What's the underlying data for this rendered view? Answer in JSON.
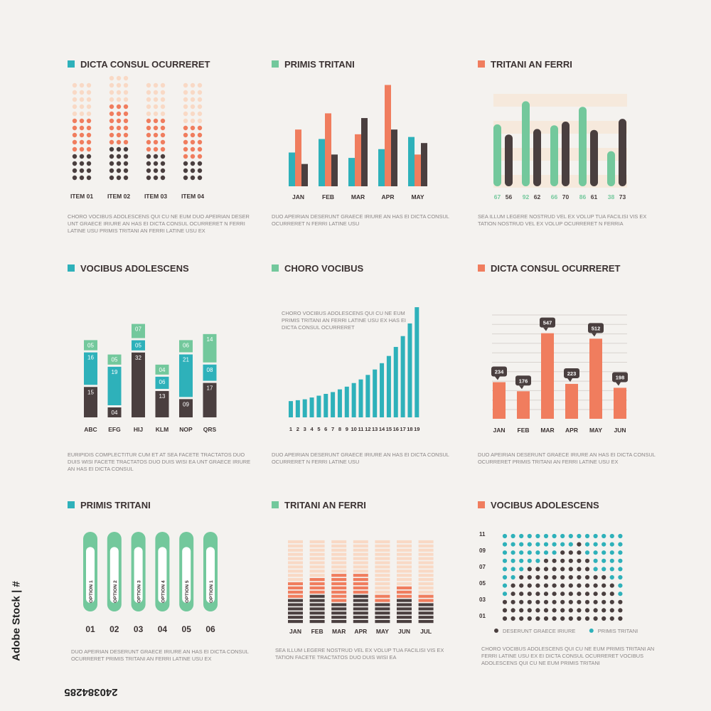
{
  "colors": {
    "teal": "#2eb1ba",
    "mint": "#73c89c",
    "salmon": "#f07d5e",
    "dark": "#4a3f3f",
    "peach": "#f9d9c5",
    "pale": "#f6e9dc",
    "grey": "#8a8585"
  },
  "watermark": {
    "id": "240384285",
    "brand": "Adobe Stock"
  },
  "panels": [
    {
      "title": "DICTA CONSUL OCURRERET",
      "color": "#2eb1ba",
      "desc": "CHORO VOCIBUS ADOLESCENS QUI CU NE EUM DUO APEIRIAN DESER UNT GRAECE IRIURE AN HAS EI DICTA CONSUL OCURRERET N FERRI LATINE USU PRIMIS TRITANI AN FERRI LATINE USU EX"
    },
    {
      "title": "PRIMIS TRITANI",
      "color": "#73c89c",
      "desc": "DUO APEIRIAN DESERUNT GRAECE IRIURE AN HAS EI DICTA CONSUL OCURRERET N FERRI LATINE USU"
    },
    {
      "title": "TRITANI AN FERRI",
      "color": "#f07d5e",
      "desc": "SEA ILLUM LEGERE NOSTRUD VEL EX VOLUP TUA FACILISI VIS EX TATION NOSTRUD VEL EX VOLUP OCURRERET N FERRIA"
    },
    {
      "title": "VOCIBUS ADOLESCENS",
      "color": "#2eb1ba",
      "desc": "EURIPIDIS COMPLECTITUR CUM ET AT SEA FACETE TRACTATOS DUO DUIS WISI FACETE TRACTATOS DUO DUIS WISI EA UNT GRAECE IRIURE AN HAS EI DICTA CONSUL"
    },
    {
      "title": "CHORO VOCIBUS",
      "color": "#73c89c",
      "desc": "DUO APEIRIAN DESERUNT GRAECE IRIURE AN HAS EI DICTA CONSUL OCURRERET N FERRI LATINE USU"
    },
    {
      "title": "DICTA CONSUL OCURRERET",
      "color": "#f07d5e",
      "desc": "DUO APEIRIAN DESERUNT GRAECE IRIURE AN HAS EI DICTA CONSUL OCURRERET PRIMIS TRITANI AN FERRI LATINE USU EX"
    },
    {
      "title": "PRIMIS TRITANI",
      "color": "#2eb1ba",
      "desc": "DUO APEIRIAN DESERUNT GRAECE IRIURE AN HAS EI DICTA CONSUL OCURRERET PRIMIS TRITANI AN FERRI LATINE USU EX"
    },
    {
      "title": "TRITANI AN FERRI",
      "color": "#73c89c",
      "desc": "SEA ILLUM LEGERE NOSTRUD VEL EX VOLUP TUA FACILISI VIS EX TATION FACETE TRACTATOS DUO DUIS WISI EA"
    },
    {
      "title": "VOCIBUS ADOLESCENS",
      "color": "#f07d5e",
      "desc": "CHORO VOCIBUS ADOLESCENS QUI CU NE EUM PRIMIS TRITANI AN FERRI LATINE USU EX EI DICTA CONSUL OCURRERET VOCIBUS ADOLESCENS QUI CU NE EUM PRIMIS TRITANI"
    }
  ],
  "chart_data": [
    {
      "type": "dot-column",
      "title": "DICTA CONSUL OCURRERET",
      "categories": [
        "ITEM 01",
        "ITEM 02",
        "ITEM 03",
        "ITEM 04"
      ],
      "series": [
        {
          "values": [
            4,
            5,
            4,
            3
          ],
          "color": "#4a3f3f"
        },
        {
          "values": [
            5,
            6,
            5,
            5
          ],
          "color": "#f07d5e"
        },
        {
          "values": [
            5,
            4,
            5,
            6
          ],
          "color": "#f9d9c5"
        }
      ]
    },
    {
      "type": "bar",
      "title": "PRIMIS TRITANI",
      "categories": [
        "JAN",
        "FEB",
        "MAR",
        "APR",
        "MAY"
      ],
      "series": [
        {
          "values": [
            50,
            70,
            42,
            55,
            73
          ],
          "color": "#2eb1ba"
        },
        {
          "values": [
            84,
            108,
            77,
            150,
            47
          ],
          "color": "#f07d5e"
        },
        {
          "values": [
            33,
            47,
            101,
            84,
            64
          ],
          "color": "#4a3f3f"
        }
      ]
    },
    {
      "type": "bar",
      "title": "TRITANI AN FERRI",
      "x": [
        "67",
        "56",
        "92",
        "62",
        "66",
        "70",
        "86",
        "61",
        "38",
        "73"
      ],
      "values": [
        67,
        56,
        92,
        62,
        66,
        70,
        86,
        61,
        38,
        73
      ],
      "value_labels": [
        {
          "values": [
            67,
            92,
            66,
            86,
            38
          ],
          "color": "#73c89c"
        },
        {
          "values": [
            56,
            62,
            70,
            61,
            73
          ],
          "color": "#4a3f3f"
        }
      ],
      "colors": [
        "#73c89c",
        "#4a3f3f"
      ]
    },
    {
      "type": "stacked-bar",
      "title": "VOCIBUS ADOLESCENS",
      "categories": [
        "ABC",
        "EFG",
        "HIJ",
        "KLM",
        "NOP",
        "QRS"
      ],
      "series": [
        {
          "values": [
            "15",
            "04",
            "32",
            "13",
            "09",
            "17"
          ],
          "color": "#4a3f3f"
        },
        {
          "values": [
            "16",
            "19",
            "05",
            "06",
            "21",
            "08"
          ],
          "color": "#2eb1ba"
        },
        {
          "values": [
            "05",
            "05",
            "07",
            "04",
            "06",
            "14"
          ],
          "color": "#73c89c"
        }
      ]
    },
    {
      "type": "bar",
      "title": "CHORO VOCIBUS",
      "annotation": "CHORO VOCIBUS ADOLESCENS QUI CU NE EUM PRIMIS TRITANI AN FERRI LATINE USU EX HAS EI DICTA CONSUL OCURRERET",
      "categories": [
        "1",
        "2",
        "3",
        "4",
        "5",
        "6",
        "7",
        "8",
        "9",
        "10",
        "11",
        "12",
        "13",
        "14",
        "15",
        "16",
        "17",
        "18",
        "19"
      ],
      "values": [
        18,
        19,
        20,
        22,
        24,
        26,
        28,
        31,
        34,
        38,
        42,
        47,
        53,
        60,
        68,
        78,
        90,
        104,
        122
      ],
      "color": "#2eb1ba"
    },
    {
      "type": "bar",
      "title": "DICTA CONSUL OCURRERET",
      "categories": [
        "JAN",
        "FEB",
        "MAR",
        "APR",
        "MAY",
        "JUN"
      ],
      "values": [
        234,
        176,
        547,
        223,
        512,
        198
      ],
      "value_labels": [
        "234",
        "176",
        "547",
        "223",
        "512",
        "198"
      ],
      "color": "#f07d5e",
      "grid": true
    },
    {
      "type": "gauge",
      "title": "PRIMIS TRITANI",
      "categories": [
        "01",
        "02",
        "03",
        "04",
        "05",
        "06"
      ],
      "labels": [
        "OPTION 1",
        "OPTION 2",
        "OPTION 3",
        "OPTION 4",
        "OPTION 5",
        "OPTION 1"
      ],
      "values": [
        0.92,
        0.92,
        0.92,
        0.92,
        0.92,
        0.92
      ],
      "color": "#73c89c"
    },
    {
      "type": "segmented-bar",
      "title": "TRITANI AN FERRI",
      "categories": [
        "JAN",
        "FEB",
        "MAR",
        "APR",
        "MAY",
        "JUN",
        "JUL"
      ],
      "series": [
        {
          "values": [
            6,
            7,
            5,
            7,
            5,
            6,
            5
          ],
          "color": "#4a3f3f"
        },
        {
          "values": [
            4,
            4,
            7,
            5,
            2,
            3,
            2
          ],
          "color": "#f07d5e"
        },
        {
          "values": [
            10,
            9,
            8,
            8,
            13,
            11,
            13
          ],
          "color": "#f9d9c5"
        }
      ],
      "segments_total": 20
    },
    {
      "type": "dot-area",
      "title": "VOCIBUS ADOLESCENS",
      "yticks": [
        "11",
        "09",
        "07",
        "05",
        "03",
        "01"
      ],
      "legend": [
        {
          "name": "DESERUNT GRAECE IRIURE",
          "color": "#4a3f3f"
        },
        {
          "name": "PRIMIS TRITANI",
          "color": "#2eb1ba"
        }
      ],
      "series": [
        {
          "name": "DESERUNT GRAECE IRIURE",
          "values": [
            3,
            5,
            6,
            7,
            7,
            8,
            8,
            9,
            9,
            10,
            8,
            6,
            6,
            5,
            3
          ],
          "color": "#4a3f3f"
        },
        {
          "name": "PRIMIS TRITANI",
          "values": [
            14,
            14,
            14,
            14,
            14,
            14,
            14,
            14,
            14,
            14,
            14,
            14,
            14,
            14,
            14
          ],
          "color": "#2eb1ba"
        }
      ]
    }
  ]
}
